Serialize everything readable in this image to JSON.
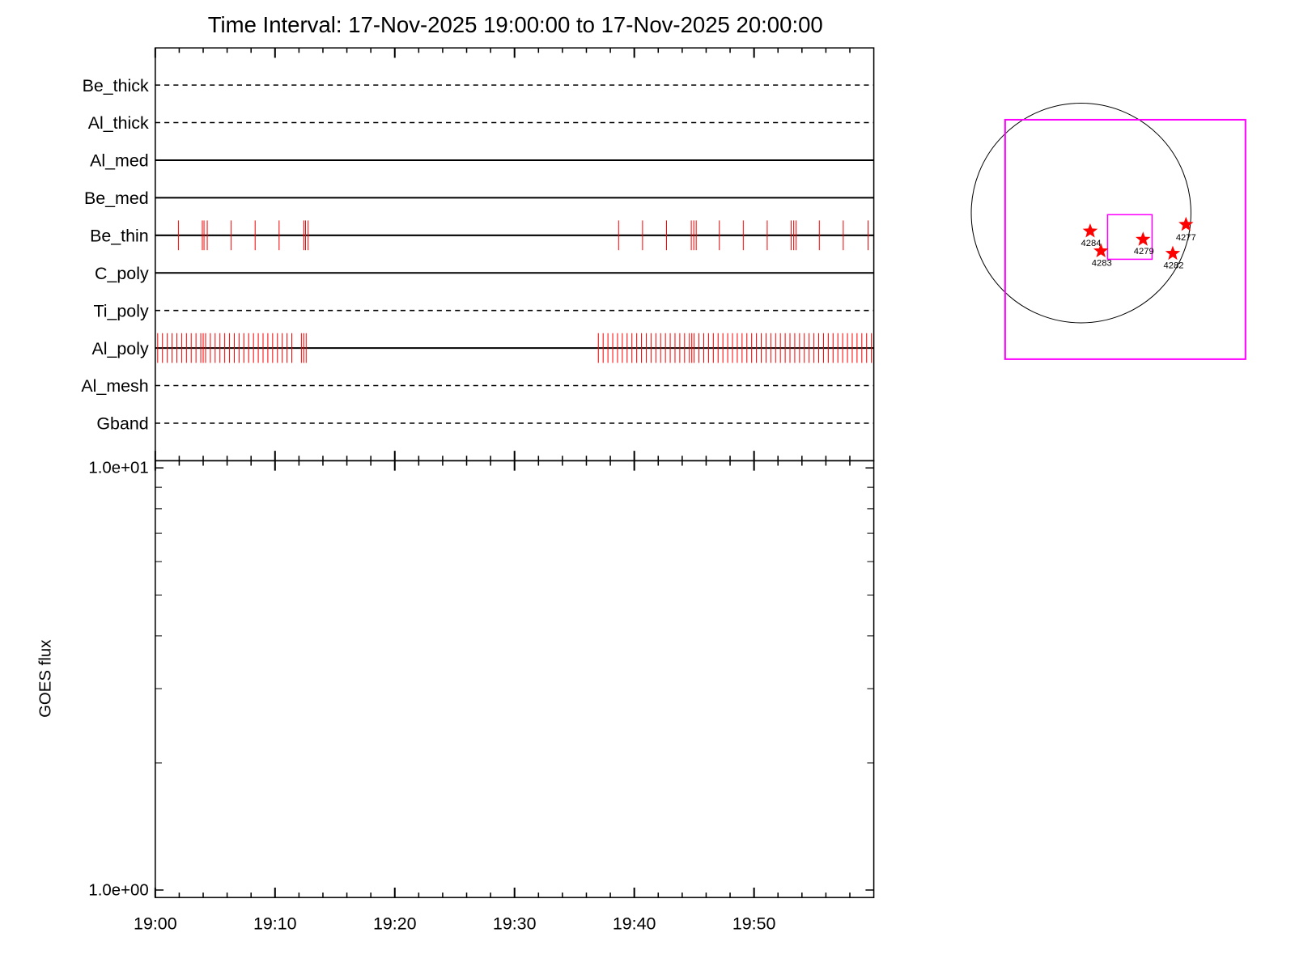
{
  "chart_data": [
    {
      "type": "events",
      "title": "Time Interval: 17-Nov-2025 19:00:00 to 17-Nov-2025 20:00:00",
      "xlim": [
        0,
        60
      ],
      "xticks": [
        0,
        10,
        20,
        30,
        40,
        50
      ],
      "xminorticks": [
        2,
        4,
        6,
        8,
        12,
        14,
        16,
        18,
        22,
        24,
        26,
        28,
        32,
        34,
        36,
        38,
        42,
        44,
        46,
        48,
        52,
        54,
        56,
        58
      ],
      "event_color": "#ff0000",
      "series": [
        {
          "name": "Be_thick",
          "style": "dashed",
          "values": []
        },
        {
          "name": "Al_thick",
          "style": "dashed",
          "values": []
        },
        {
          "name": "Al_med",
          "style": "solid",
          "values": []
        },
        {
          "name": "Be_med",
          "style": "solid",
          "values": []
        },
        {
          "name": "Be_thin",
          "style": "solid",
          "values": [
            1.93,
            3.93,
            4.07,
            4.34,
            6.34,
            8.34,
            10.34,
            12.41,
            12.55,
            12.76,
            38.69,
            40.69,
            42.69,
            44.76,
            44.97,
            45.17,
            47.1,
            49.1,
            51.1,
            53.1,
            53.31,
            53.52,
            55.45,
            57.45,
            59.52
          ]
        },
        {
          "name": "C_poly",
          "style": "solid",
          "values": []
        },
        {
          "name": "Ti_poly",
          "style": "dashed",
          "values": []
        },
        {
          "name": "Al_poly",
          "style": "solid",
          "values": [
            0.2,
            0.6,
            1.0,
            1.4,
            1.8,
            2.2,
            2.6,
            3.0,
            3.4,
            3.8,
            4.0,
            4.2,
            4.6,
            5.0,
            5.4,
            5.8,
            6.2,
            6.6,
            7.0,
            7.4,
            7.8,
            8.2,
            8.6,
            9.0,
            9.4,
            9.8,
            10.2,
            10.6,
            11.0,
            11.4,
            12.2,
            12.4,
            12.6,
            37.0,
            37.4,
            37.8,
            38.2,
            38.6,
            39.0,
            39.4,
            39.8,
            40.2,
            40.6,
            41.0,
            41.4,
            41.8,
            42.2,
            42.6,
            43.0,
            43.4,
            43.8,
            44.2,
            44.6,
            44.8,
            45.0,
            45.4,
            45.8,
            46.2,
            46.6,
            47.0,
            47.4,
            47.8,
            48.2,
            48.6,
            49.0,
            49.4,
            49.8,
            50.2,
            50.6,
            51.0,
            51.4,
            51.8,
            52.2,
            52.6,
            53.0,
            53.4,
            53.8,
            54.2,
            54.6,
            55.0,
            55.4,
            55.8,
            56.2,
            56.6,
            57.0,
            57.4,
            57.8,
            58.2,
            58.6,
            59.0,
            59.4,
            59.8
          ]
        },
        {
          "name": "Al_mesh",
          "style": "dashed",
          "values": []
        },
        {
          "name": "Gband",
          "style": "dashed",
          "values": []
        }
      ]
    },
    {
      "type": "line",
      "ylabel": "GOES flux",
      "log": true,
      "xlim": [
        0,
        60
      ],
      "xticks": [
        {
          "value": 0,
          "label": "19:00"
        },
        {
          "value": 10,
          "label": "19:10"
        },
        {
          "value": 20,
          "label": "19:20"
        },
        {
          "value": 30,
          "label": "19:30"
        },
        {
          "value": 40,
          "label": "19:40"
        },
        {
          "value": 50,
          "label": "19:50"
        }
      ],
      "xminorticks": [
        2,
        4,
        6,
        8,
        12,
        14,
        16,
        18,
        22,
        24,
        26,
        28,
        32,
        34,
        36,
        38,
        42,
        44,
        46,
        48,
        52,
        54,
        56,
        58
      ],
      "ylim": [
        0.96,
        10.4
      ],
      "yticks": [
        {
          "value": 10,
          "label": "1.0e+01"
        },
        {
          "value": 1,
          "label": "1.0e+00"
        }
      ],
      "yminorticks": [
        2,
        3,
        4,
        5,
        6,
        7,
        8,
        9
      ],
      "series": []
    }
  ],
  "map": {
    "regions": [
      "4284",
      "4283",
      "4279",
      "4277",
      "4282"
    ]
  }
}
